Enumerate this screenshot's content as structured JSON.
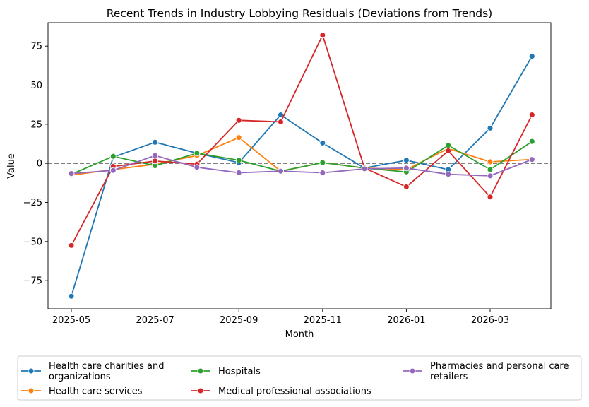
{
  "chart_data": {
    "type": "line",
    "title": "Recent Trends in Industry Lobbying Residuals (Deviations from Trends)",
    "xlabel": "Month",
    "ylabel": "Value",
    "x": [
      "2025-05",
      "2025-06",
      "2025-07",
      "2025-08",
      "2025-09",
      "2025-10",
      "2025-11",
      "2025-12",
      "2026-01",
      "2026-02",
      "2026-03",
      "2026-04"
    ],
    "xticks": [
      "2025-05",
      "2025-07",
      "2025-09",
      "2025-11",
      "2026-01",
      "2026-03"
    ],
    "yticks": [
      -75,
      -50,
      -25,
      0,
      25,
      50,
      75
    ],
    "ylim": [
      -93,
      90
    ],
    "zero_line": {
      "value": 0,
      "style": "dashed",
      "color": "#808080"
    },
    "grid": false,
    "legend": {
      "placement": "bottom",
      "columns": 3
    },
    "series": [
      {
        "name": "Health care charities and organizations",
        "color": "#1f77b4",
        "values": [
          -85,
          4,
          13.5,
          6.5,
          0.5,
          31,
          13,
          -3,
          2,
          -4,
          22.5,
          68.5
        ]
      },
      {
        "name": "Health care services",
        "color": "#ff7f0e",
        "values": [
          -7.5,
          -4,
          -0.5,
          5,
          16.5,
          -5,
          0.5,
          -3,
          -4,
          9.5,
          1,
          2.5
        ]
      },
      {
        "name": "Hospitals",
        "color": "#2ca02c",
        "values": [
          -7,
          4.5,
          -1.5,
          6.5,
          2,
          -5,
          0.5,
          -3,
          -5.5,
          11.5,
          -4,
          14
        ]
      },
      {
        "name": "Medical professional associations",
        "color": "#d62728",
        "values": [
          -52.5,
          -2,
          1.5,
          -0.5,
          27.5,
          26.5,
          82,
          -3,
          -15,
          8,
          -21.5,
          31
        ]
      },
      {
        "name": "Pharmacies and personal care retailers",
        "color": "#9467bd",
        "values": [
          -6.5,
          -4.5,
          5,
          -2.5,
          -6,
          -5,
          -6,
          -3.5,
          -3,
          -7,
          -8,
          2.5
        ]
      }
    ]
  }
}
